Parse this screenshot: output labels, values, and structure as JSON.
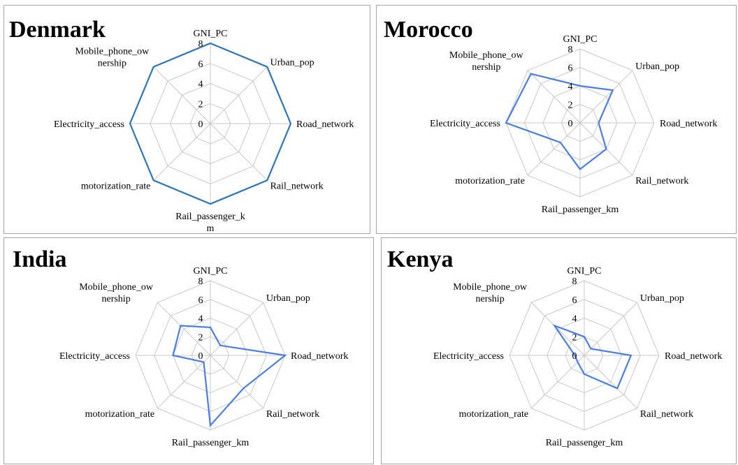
{
  "chart_data": [
    {
      "type": "radar",
      "title": "Denmark",
      "axes": [
        "GNI_PC",
        "Urban_pop",
        "Road_network",
        "Rail_network",
        "Rail_passenger_k\nm",
        "motorization_rate",
        "Electricity_access",
        "Mobile_phone_ow\nnership"
      ],
      "tick_labels": [
        "0",
        "2",
        "4",
        "6",
        "8"
      ],
      "rmax": 8,
      "values": [
        8,
        8,
        8,
        8,
        8,
        8,
        8,
        8
      ],
      "color": "#2e75b6"
    },
    {
      "type": "radar",
      "title": "Morocco",
      "axes": [
        "GNI_PC",
        "Urban_pop",
        "Road_network",
        "Rail_network",
        "Rail_passenger_km",
        "motorization_rate",
        "Electricity_access",
        "Mobile_phone_ow\nnership"
      ],
      "tick_labels": [
        "0",
        "2",
        "4",
        "6",
        "8"
      ],
      "rmax": 8,
      "values": [
        4,
        5,
        2,
        4,
        5,
        3,
        8,
        7.5
      ],
      "color": "#4a7ee0"
    },
    {
      "type": "radar",
      "title": "India",
      "axes": [
        "GNI_PC",
        "Urban_pop",
        "Road_network",
        "Rail_network",
        "Rail_passenger_km",
        "motorization_rate",
        "Electricity_access",
        "Mobile_phone_ow\nnership"
      ],
      "tick_labels": [
        "0",
        "2",
        "4",
        "6",
        "8"
      ],
      "rmax": 8,
      "values": [
        3,
        1.5,
        8,
        5,
        7.5,
        1,
        4,
        4.5
      ],
      "color": "#4a7ee0"
    },
    {
      "type": "radar",
      "title": "Kenya",
      "axes": [
        "GNI_PC",
        "Urban_pop",
        "Road_network",
        "Rail_network",
        "Rail_passenger_km",
        "motorization_rate",
        "Electricity_access",
        "Mobile_phone_ow\nnership"
      ],
      "tick_labels": [
        "0",
        "2",
        "4",
        "6",
        "8"
      ],
      "rmax": 8,
      "values": [
        2,
        1,
        5,
        5,
        2,
        1,
        1,
        4.5
      ],
      "color": "#4a7ee0"
    }
  ]
}
